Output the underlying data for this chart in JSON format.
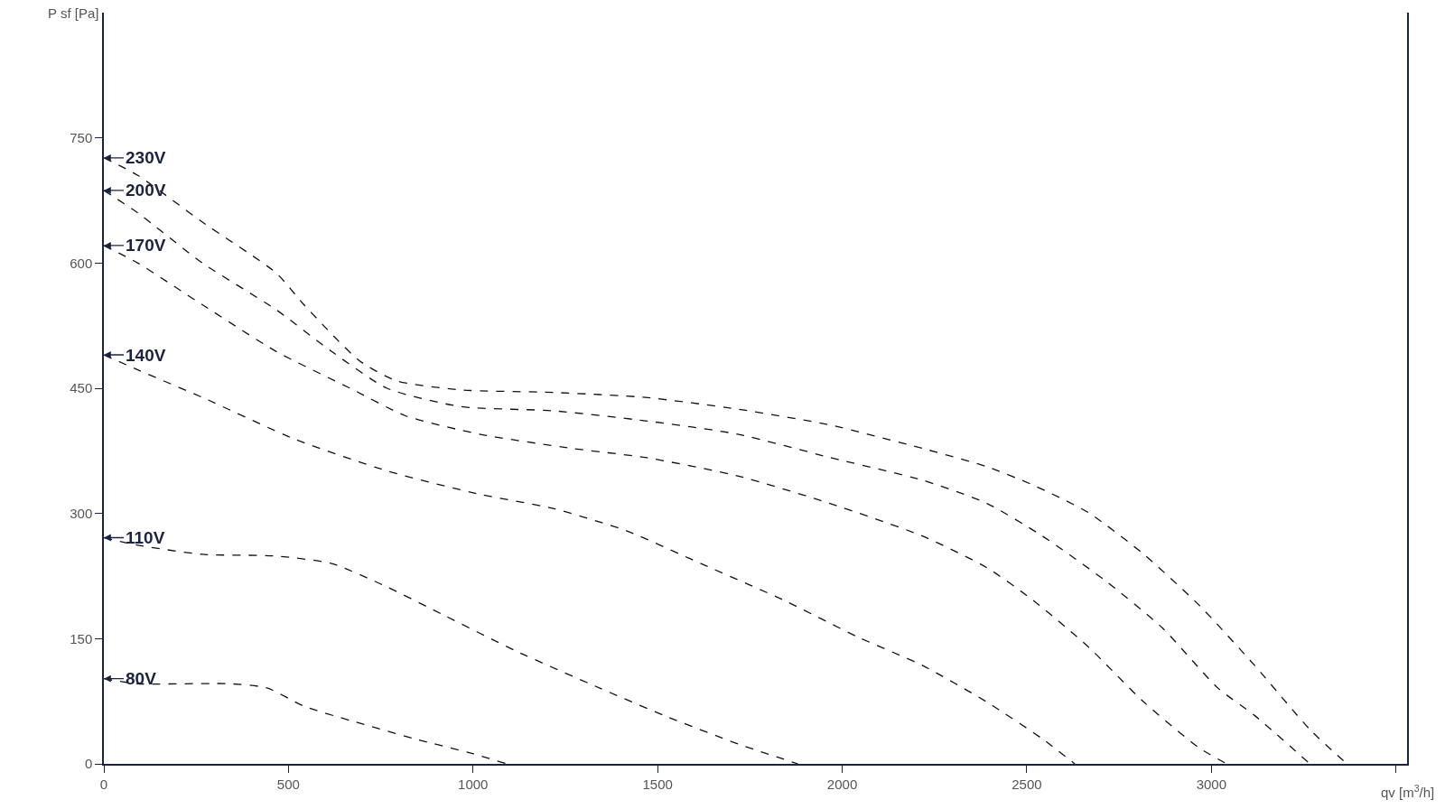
{
  "chart_data": {
    "type": "line",
    "xlabel": "qv [m$^{3}$/h]",
    "ylabel": "P sf [Pa]",
    "xlim": [
      0,
      3530
    ],
    "xticks": [
      0,
      500,
      1000,
      1500,
      2000,
      2500,
      3000,
      {
        "value": 3500,
        "label": null
      }
    ],
    "ylim": [
      0,
      900
    ],
    "yticks": [
      0,
      150,
      300,
      450,
      600,
      750
    ],
    "legend": "left",
    "marker": "none",
    "line_style": "dashed",
    "series": [
      {
        "name": "230V",
        "color": "#111111",
        "x": [
          0,
          92,
          267,
          467,
          542,
          692,
          792,
          967,
          1217,
          1467,
          1717,
          1967,
          2217,
          2392,
          2517,
          2667,
          2817,
          2967,
          3117,
          3267,
          3367
        ],
        "values": [
          726,
          705,
          649,
          588,
          550,
          483,
          459,
          448,
          445,
          439,
          425,
          406,
          378,
          356,
          334,
          301,
          251,
          190,
          118,
          41,
          0
        ]
      },
      {
        "name": "200V",
        "color": "#111111",
        "x": [
          0,
          92,
          267,
          467,
          617,
          767,
          967,
          1217,
          1467,
          1717,
          1967,
          2217,
          2392,
          2542,
          2717,
          2867,
          3017,
          3117,
          3267
        ],
        "values": [
          687,
          660,
          600,
          544,
          494,
          450,
          428,
          423,
          411,
          395,
          367,
          340,
          312,
          273,
          218,
          163,
          91,
          58,
          0
        ]
      },
      {
        "name": "170V",
        "color": "#111111",
        "x": [
          0,
          92,
          267,
          467,
          667,
          817,
          1017,
          1267,
          1467,
          1717,
          1967,
          2217,
          2392,
          2517,
          2667,
          2817,
          2967,
          3042
        ],
        "values": [
          621,
          600,
          550,
          494,
          450,
          417,
          395,
          378,
          367,
          345,
          312,
          273,
          235,
          196,
          140,
          74,
          19,
          0
        ]
      },
      {
        "name": "140V",
        "color": "#111111",
        "x": [
          0,
          92,
          267,
          517,
          767,
          1017,
          1217,
          1417,
          1617,
          1842,
          2042,
          2217,
          2392,
          2542,
          2630
        ],
        "values": [
          490,
          472,
          439,
          389,
          351,
          323,
          306,
          279,
          240,
          196,
          152,
          118,
          74,
          30,
          0
        ]
      },
      {
        "name": "110V",
        "color": "#111111",
        "x": [
          0,
          92,
          267,
          467,
          617,
          767,
          917,
          1117,
          1342,
          1517,
          1717,
          1880
        ],
        "values": [
          271,
          262,
          251,
          249,
          240,
          212,
          179,
          135,
          91,
          58,
          24,
          0
        ]
      },
      {
        "name": "80V",
        "color": "#111111",
        "x": [
          0,
          92,
          342,
          442,
          542,
          667,
          842,
          992,
          1092
        ],
        "values": [
          102,
          96,
          96,
          91,
          69,
          52,
          30,
          13,
          0
        ]
      }
    ]
  }
}
